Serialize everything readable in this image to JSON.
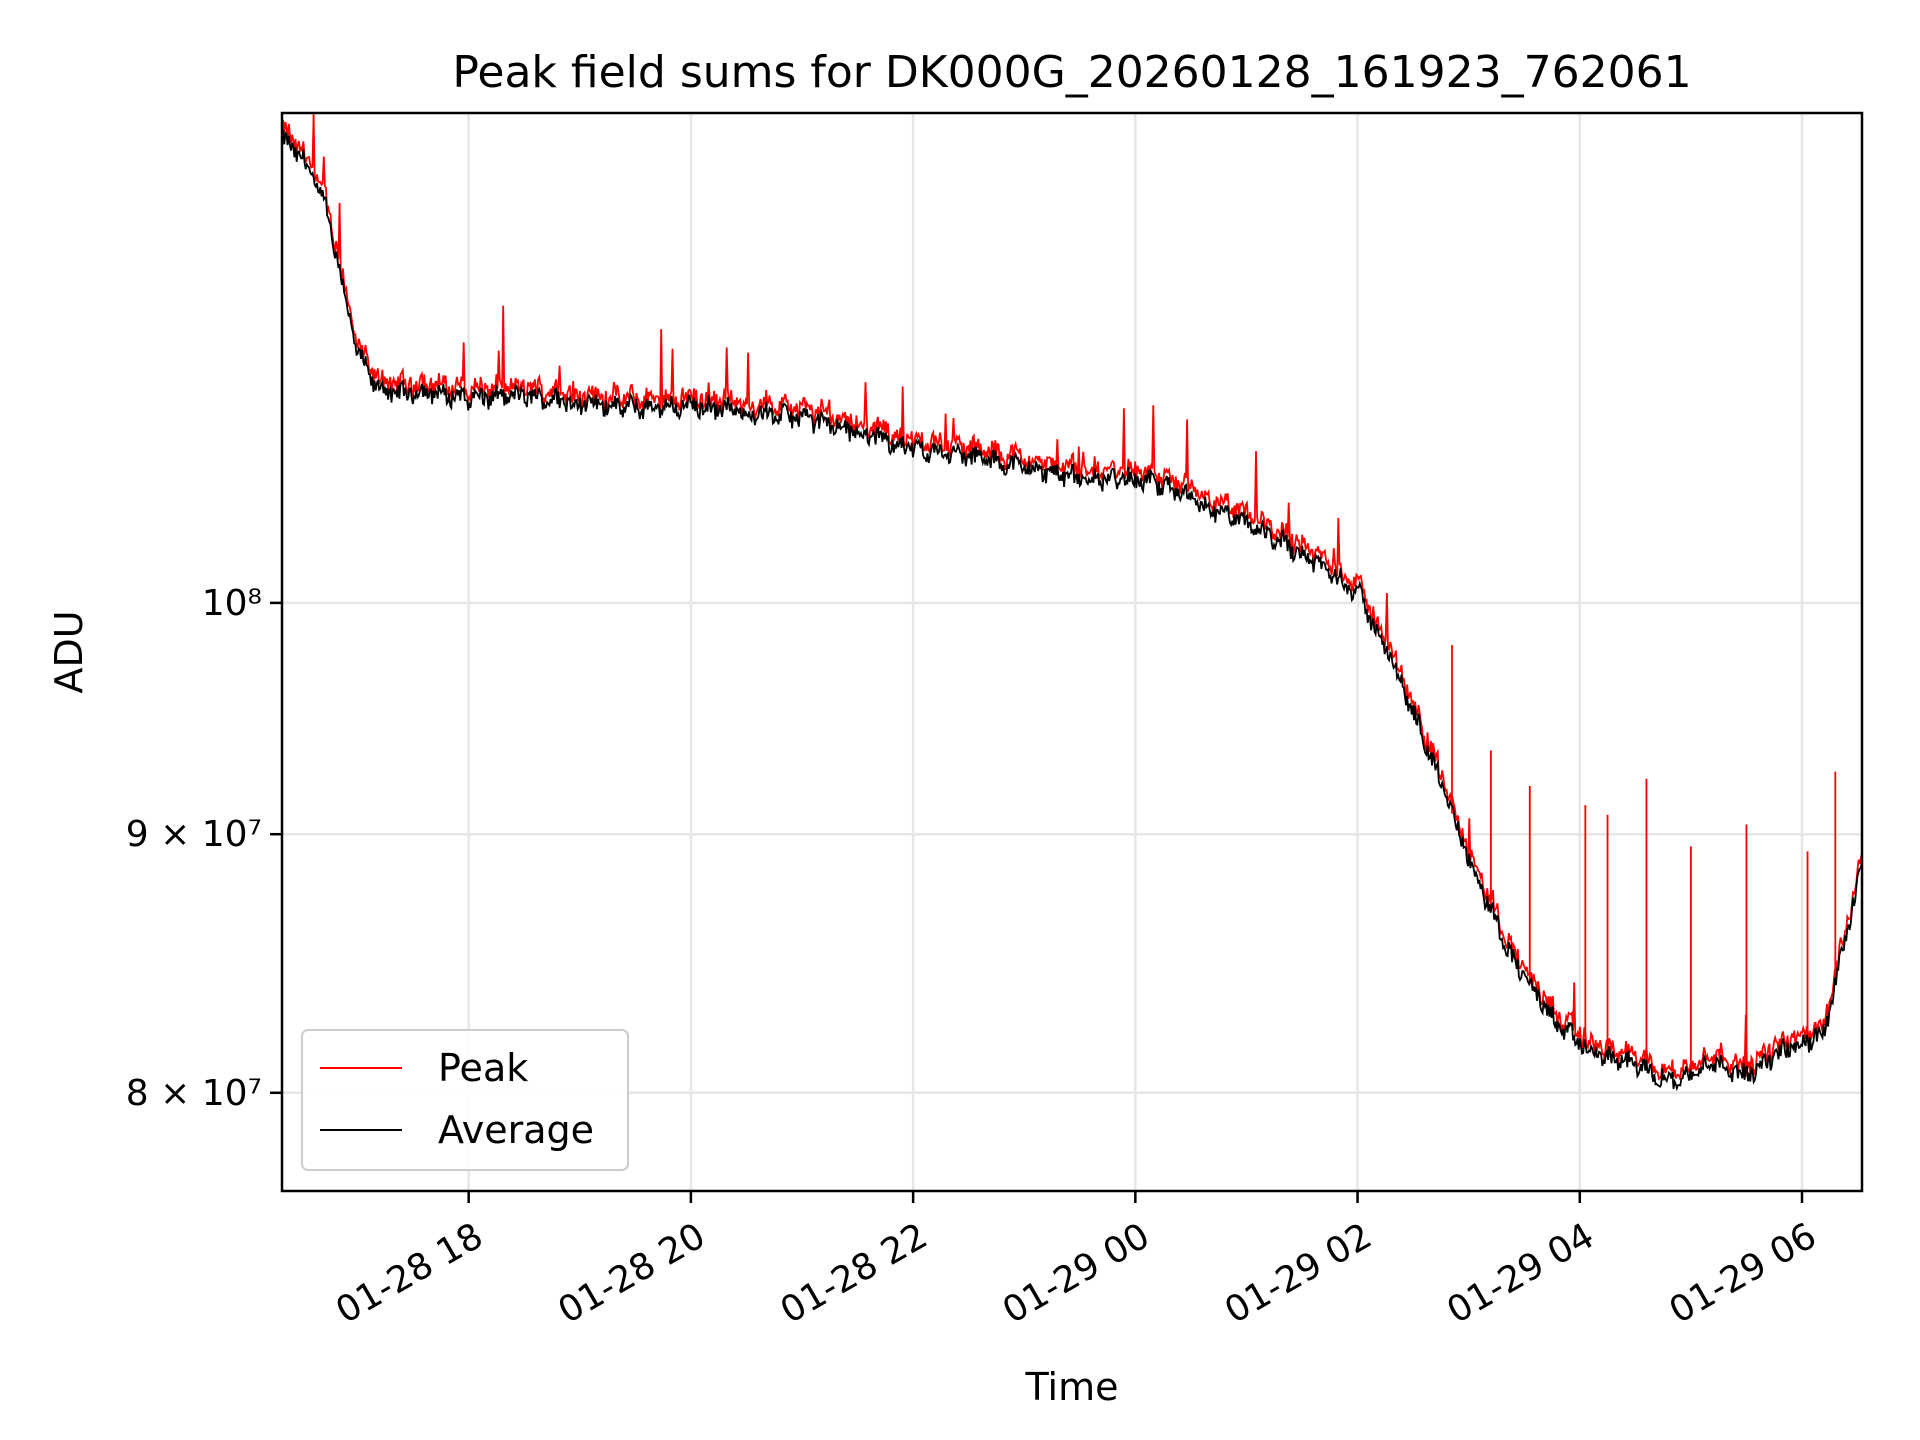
{
  "chart_data": {
    "type": "line",
    "title": "Peak field sums for DK000G_20260128_161923_762061",
    "xlabel": "Time",
    "ylabel": "ADU",
    "x_ticks": [
      "01-28 18",
      "01-28 20",
      "01-28 22",
      "01-29 00",
      "01-29 02",
      "01-29 04",
      "01-29 06"
    ],
    "x_tick_hours": [
      18,
      20,
      22,
      24,
      26,
      28,
      30
    ],
    "xlim_hours": [
      16.32,
      30.54
    ],
    "y_scale": "log",
    "ylim": [
      76500000,
      125000000
    ],
    "y_ticks": [
      {
        "value": 80000000,
        "label": "8 × 10⁷"
      },
      {
        "value": 90000000,
        "label": "9 × 10⁷"
      },
      {
        "value": 100000000,
        "label": "10⁸"
      }
    ],
    "grid": true,
    "legend_position": "lower-left",
    "series": [
      {
        "name": "Peak",
        "color": "#ff0000"
      },
      {
        "name": "Average",
        "color": "#000000"
      }
    ],
    "average_profile": [
      [
        16.32,
        123500000
      ],
      [
        16.5,
        122500000
      ],
      [
        16.7,
        120000000
      ],
      [
        16.85,
        116000000
      ],
      [
        17.0,
        112000000
      ],
      [
        17.15,
        110500000
      ],
      [
        17.3,
        110000000
      ],
      [
        17.6,
        110100000
      ],
      [
        18.0,
        109800000
      ],
      [
        18.5,
        109900000
      ],
      [
        19.0,
        109500000
      ],
      [
        19.5,
        109300000
      ],
      [
        20.0,
        109400000
      ],
      [
        20.5,
        109100000
      ],
      [
        21.0,
        108800000
      ],
      [
        21.5,
        108100000
      ],
      [
        22.0,
        107300000
      ],
      [
        22.5,
        106900000
      ],
      [
        23.0,
        106400000
      ],
      [
        23.5,
        105800000
      ],
      [
        24.0,
        105800000
      ],
      [
        24.3,
        105400000
      ],
      [
        24.6,
        104500000
      ],
      [
        25.0,
        103700000
      ],
      [
        25.5,
        102300000
      ],
      [
        26.0,
        100500000
      ],
      [
        26.3,
        97500000
      ],
      [
        26.6,
        94000000
      ],
      [
        27.0,
        89000000
      ],
      [
        27.4,
        85000000
      ],
      [
        27.8,
        82500000
      ],
      [
        28.1,
        81500000
      ],
      [
        28.5,
        81000000
      ],
      [
        28.8,
        80500000
      ],
      [
        29.0,
        80600000
      ],
      [
        29.2,
        81200000
      ],
      [
        29.5,
        80600000
      ],
      [
        29.8,
        81500000
      ],
      [
        30.0,
        81800000
      ],
      [
        30.2,
        82200000
      ],
      [
        30.35,
        85000000
      ],
      [
        30.5,
        88000000
      ],
      [
        30.54,
        89000000
      ]
    ],
    "peak_spikes": [
      {
        "x": 26.85,
        "y": 98100000
      },
      {
        "x": 27.2,
        "y": 93500000
      },
      {
        "x": 27.55,
        "y": 92000000
      },
      {
        "x": 28.05,
        "y": 91200000
      },
      {
        "x": 28.25,
        "y": 90800000
      },
      {
        "x": 28.6,
        "y": 92300000
      },
      {
        "x": 29.0,
        "y": 89500000
      },
      {
        "x": 29.5,
        "y": 90400000
      },
      {
        "x": 30.05,
        "y": 89300000
      },
      {
        "x": 30.3,
        "y": 92600000
      }
    ]
  }
}
